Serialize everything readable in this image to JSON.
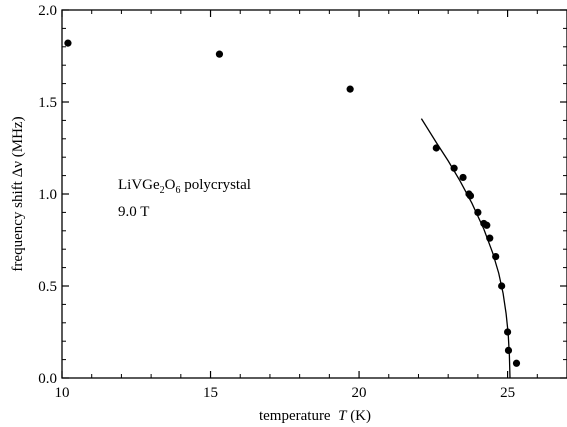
{
  "chart_data": {
    "type": "scatter",
    "title": "",
    "xlabel": {
      "prefix": "temperature",
      "var": "T",
      "unit": "(K)"
    },
    "ylabel": "frequency shift  Δν (MHz)",
    "xlim": [
      10,
      27
    ],
    "ylim": [
      0,
      2.0
    ],
    "x_ticks": [
      10,
      15,
      20,
      25
    ],
    "x_tick_labels": [
      "10",
      "15",
      "20",
      "25"
    ],
    "y_ticks": [
      0,
      0.5,
      1.0,
      1.5,
      2.0
    ],
    "y_tick_labels": [
      "0.0",
      "0.5",
      "1.0",
      "1.5",
      "2.0"
    ],
    "grid": false,
    "annotation": {
      "line1": {
        "a": "LiVGe",
        "s1": "2",
        "b": "O",
        "s2": "6",
        "c": " polycrystal"
      },
      "line2": "9.0 T"
    },
    "series": [
      {
        "kind": "points",
        "x": [
          10.2,
          15.3,
          19.7,
          22.6,
          23.2,
          23.5,
          23.7,
          23.75,
          24.0,
          24.2,
          24.3,
          24.4,
          24.6,
          24.8,
          25.0,
          25.03,
          25.3
        ],
        "y": [
          1.82,
          1.76,
          1.57,
          1.25,
          1.14,
          1.09,
          1.0,
          0.99,
          0.9,
          0.84,
          0.83,
          0.76,
          0.66,
          0.5,
          0.25,
          0.15,
          0.08
        ]
      },
      {
        "kind": "fit-curve",
        "x": [
          22.1,
          22.6,
          23.0,
          23.4,
          23.8,
          24.2,
          24.5,
          24.7,
          24.85,
          24.95,
          25.02,
          25.06,
          25.08
        ],
        "y": [
          1.41,
          1.28,
          1.18,
          1.07,
          0.95,
          0.81,
          0.68,
          0.57,
          0.46,
          0.35,
          0.24,
          0.12,
          0.0
        ]
      }
    ]
  }
}
